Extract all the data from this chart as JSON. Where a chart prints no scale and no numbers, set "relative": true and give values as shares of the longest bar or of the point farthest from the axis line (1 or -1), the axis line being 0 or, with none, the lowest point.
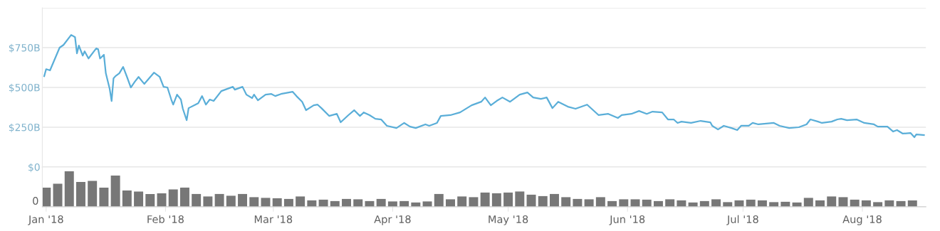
{
  "chart_data": [
    {
      "type": "line",
      "xlim": [
        "2017-12-31",
        "2018-08-17T12:00"
      ],
      "ylim": [
        0,
        1000
      ],
      "grid": "y",
      "tick_labels": "y",
      "yticks": [
        {
          "value": 0,
          "label": "$0"
        },
        {
          "value": 250,
          "label": "$250B"
        },
        {
          "value": 500,
          "label": "$500B"
        },
        {
          "value": 750,
          "label": "$750B"
        },
        {
          "value": 1000,
          "label": null
        }
      ],
      "series": [
        {
          "color": "#5aaed8",
          "x": [
            "2017-12-31T12:00",
            "2018-01-01",
            "2018-01-02",
            "2018-01-04T12:00",
            "2018-01-05T12:00",
            "2018-01-07T12:00",
            "2018-01-08T12:00",
            "2018-01-09",
            "2018-01-09T12:00",
            "2018-01-10T12:00",
            "2018-01-11",
            "2018-01-12",
            "2018-01-14",
            "2018-01-14T12:00",
            "2018-01-15",
            "2018-01-16",
            "2018-01-16T12:00",
            "2018-01-17T12:00",
            "2018-01-18",
            "2018-01-18T12:00",
            "2018-01-19",
            "2018-01-20",
            "2018-01-21",
            "2018-01-22",
            "2018-01-23",
            "2018-01-24",
            "2018-01-25",
            "2018-01-26T12:00",
            "2018-01-29",
            "2018-01-30T12:00",
            "2018-01-31T12:00",
            "2018-02-01T12:00",
            "2018-02-02T12:00",
            "2018-02-03",
            "2018-02-04",
            "2018-02-05",
            "2018-02-05T12:00",
            "2018-02-06T12:00",
            "2018-02-07",
            "2018-02-08T12:00",
            "2018-02-09T12:00",
            "2018-02-10T12:00",
            "2018-02-11T12:00",
            "2018-02-12T12:00",
            "2018-02-13T12:00",
            "2018-02-15T12:00",
            "2018-02-18T12:00",
            "2018-02-19",
            "2018-02-21",
            "2018-02-22",
            "2018-02-23T12:00",
            "2018-02-24",
            "2018-02-25",
            "2018-02-27",
            "2018-02-28T12:00",
            "2018-03-01T12:00",
            "2018-03-03",
            "2018-03-06",
            "2018-03-07",
            "2018-03-08T12:00",
            "2018-03-09T12:00",
            "2018-03-11T12:00",
            "2018-03-12T12:00",
            "2018-03-13T12:00",
            "2018-03-15T12:00",
            "2018-03-17T12:00",
            "2018-03-18T12:00",
            "2018-03-20T12:00",
            "2018-03-22",
            "2018-03-23T12:00",
            "2018-03-24T12:00",
            "2018-03-26",
            "2018-03-27T12:00",
            "2018-03-29",
            "2018-03-30T12:00",
            "2018-04-02",
            "2018-04-04",
            "2018-04-05T12:00",
            "2018-04-07",
            "2018-04-09T12:00",
            "2018-04-10T12:00",
            "2018-04-12T12:00",
            "2018-04-13T12:00",
            "2018-04-16",
            "2018-04-18T12:00",
            "2018-04-21T12:00",
            "2018-04-24",
            "2018-04-25",
            "2018-04-26T12:00",
            "2018-04-28",
            "2018-04-29T12:00",
            "2018-05-01T12:00",
            "2018-05-04",
            "2018-05-06",
            "2018-05-07T12:00",
            "2018-05-09T12:00",
            "2018-05-11",
            "2018-05-12T12:00",
            "2018-05-14",
            "2018-05-16T12:00",
            "2018-05-18T12:00",
            "2018-05-21T12:00",
            "2018-05-24T12:00",
            "2018-05-27",
            "2018-05-29T12:00",
            "2018-05-30T12:00",
            "2018-06-02",
            "2018-06-04",
            "2018-06-06",
            "2018-06-07T12:00",
            "2018-06-10",
            "2018-06-11T12:00",
            "2018-06-13",
            "2018-06-14",
            "2018-06-15",
            "2018-06-17T12:00",
            "2018-06-20",
            "2018-06-22T12:00",
            "2018-06-23",
            "2018-06-24T12:00",
            "2018-06-26",
            "2018-06-28",
            "2018-06-29T12:00",
            "2018-06-30T12:00",
            "2018-07-02T12:00",
            "2018-07-03T12:00",
            "2018-07-05",
            "2018-07-09",
            "2018-07-10T12:00",
            "2018-07-13",
            "2018-07-15T12:00",
            "2018-07-17T12:00",
            "2018-07-18T12:00",
            "2018-07-20T12:00",
            "2018-07-21T12:00",
            "2018-07-24",
            "2018-07-25T12:00",
            "2018-07-26T12:00",
            "2018-07-28",
            "2018-07-30T12:00",
            "2018-08-01T12:00",
            "2018-08-04",
            "2018-08-05",
            "2018-08-07T12:00",
            "2018-08-09",
            "2018-08-10",
            "2018-08-11T12:00",
            "2018-08-13T12:00",
            "2018-08-14T12:00",
            "2018-08-15",
            "2018-08-17"
          ],
          "values": [
            571,
            615,
            607,
            750,
            767,
            830,
            816,
            714,
            763,
            700,
            727,
            682,
            745,
            740,
            682,
            705,
            589,
            491,
            415,
            557,
            571,
            589,
            629,
            566,
            500,
            535,
            566,
            522,
            593,
            566,
            504,
            500,
            424,
            392,
            455,
            424,
            366,
            294,
            370,
            388,
            401,
            446,
            392,
            424,
            415,
            477,
            504,
            486,
            504,
            455,
            433,
            455,
            419,
            455,
            459,
            446,
            459,
            473,
            446,
            410,
            357,
            388,
            392,
            370,
            321,
            334,
            281,
            326,
            357,
            321,
            343,
            326,
            303,
            299,
            259,
            245,
            277,
            254,
            245,
            268,
            259,
            277,
            321,
            326,
            343,
            388,
            410,
            437,
            388,
            415,
            437,
            410,
            455,
            468,
            437,
            428,
            437,
            370,
            410,
            379,
            366,
            392,
            326,
            334,
            308,
            326,
            334,
            352,
            334,
            348,
            343,
            299,
            299,
            277,
            285,
            277,
            290,
            281,
            259,
            236,
            259,
            245,
            232,
            259,
            259,
            277,
            268,
            277,
            259,
            245,
            250,
            268,
            299,
            285,
            277,
            285,
            299,
            303,
            294,
            299,
            277,
            268,
            254,
            254,
            223,
            232,
            210,
            214,
            187,
            205,
            201
          ]
        }
      ]
    },
    {
      "type": "bar",
      "relative": true,
      "xlim": [
        "2017-12-31",
        "2018-08-17T12:00"
      ],
      "tick_labels": "x",
      "annotations": [
        "0"
      ],
      "xticks": [
        {
          "value": "2018-01-01",
          "label": "Jan '18"
        },
        {
          "value": "2018-02-01",
          "label": "Feb '18"
        },
        {
          "value": "2018-03-01",
          "label": "Mar '18"
        },
        {
          "value": "2018-04-01",
          "label": "Apr '18"
        },
        {
          "value": "2018-05-01",
          "label": "May '18"
        },
        {
          "value": "2018-06-01",
          "label": "Jun '18"
        },
        {
          "value": "2018-07-01",
          "label": "Jul '18"
        },
        {
          "value": "2018-08-01",
          "label": "Aug '18"
        }
      ],
      "series": [
        {
          "color": "#777777",
          "x": [
            "2018-01-01",
            "2018-01-04",
            "2018-01-07",
            "2018-01-10",
            "2018-01-13",
            "2018-01-16",
            "2018-01-19",
            "2018-01-22",
            "2018-01-25",
            "2018-01-28",
            "2018-01-31",
            "2018-02-03",
            "2018-02-06",
            "2018-02-09",
            "2018-02-12",
            "2018-02-15",
            "2018-02-18",
            "2018-02-21",
            "2018-02-24",
            "2018-02-27",
            "2018-03-02",
            "2018-03-05",
            "2018-03-08",
            "2018-03-11",
            "2018-03-14",
            "2018-03-17",
            "2018-03-20",
            "2018-03-23",
            "2018-03-26",
            "2018-03-29",
            "2018-04-01",
            "2018-04-04",
            "2018-04-07",
            "2018-04-10",
            "2018-04-13",
            "2018-04-16",
            "2018-04-19",
            "2018-04-22",
            "2018-04-25",
            "2018-04-28",
            "2018-05-01",
            "2018-05-04",
            "2018-05-07",
            "2018-05-10",
            "2018-05-13",
            "2018-05-16",
            "2018-05-19",
            "2018-05-22",
            "2018-05-25",
            "2018-05-28",
            "2018-05-31",
            "2018-06-03",
            "2018-06-06",
            "2018-06-09",
            "2018-06-12",
            "2018-06-15",
            "2018-06-18",
            "2018-06-21",
            "2018-06-24",
            "2018-06-27",
            "2018-06-30",
            "2018-07-03",
            "2018-07-06",
            "2018-07-09",
            "2018-07-12",
            "2018-07-15",
            "2018-07-18",
            "2018-07-21",
            "2018-07-24",
            "2018-07-27",
            "2018-07-30",
            "2018-08-02",
            "2018-08-05",
            "2018-08-08",
            "2018-08-11",
            "2018-08-14"
          ],
          "values": [
            0.54,
            0.65,
            1,
            0.7,
            0.73,
            0.54,
            0.88,
            0.46,
            0.43,
            0.36,
            0.38,
            0.49,
            0.54,
            0.36,
            0.29,
            0.36,
            0.31,
            0.36,
            0.27,
            0.25,
            0.24,
            0.22,
            0.29,
            0.18,
            0.2,
            0.16,
            0.22,
            0.21,
            0.16,
            0.22,
            0.15,
            0.16,
            0.12,
            0.15,
            0.36,
            0.21,
            0.29,
            0.27,
            0.4,
            0.38,
            0.4,
            0.43,
            0.34,
            0.3,
            0.36,
            0.27,
            0.22,
            0.21,
            0.27,
            0.16,
            0.21,
            0.21,
            0.2,
            0.16,
            0.21,
            0.18,
            0.12,
            0.16,
            0.21,
            0.13,
            0.18,
            0.2,
            0.18,
            0.13,
            0.14,
            0.12,
            0.25,
            0.18,
            0.29,
            0.27,
            0.2,
            0.18,
            0.13,
            0.18,
            0.16,
            0.18
          ]
        }
      ]
    }
  ]
}
